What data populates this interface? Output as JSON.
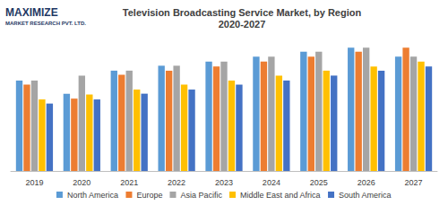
{
  "chart_data": {
    "type": "bar",
    "title": "Television Broadcasting Service Market, by Region",
    "subtitle": "2020-2027",
    "annotations": [
      "MAXIMIZE",
      "MARKET RESEARCH PVT. LTD."
    ],
    "categories": [
      "2019",
      "2020",
      "2021",
      "2022",
      "2023",
      "2024",
      "2025",
      "2026",
      "2027"
    ],
    "series": [
      {
        "name": "North America",
        "color": "#5b9bd5",
        "values": [
          110,
          94,
          122,
          128,
          133,
          139,
          145,
          150,
          139
        ]
      },
      {
        "name": "Europe",
        "color": "#ed7d31",
        "values": [
          105,
          88,
          117,
          122,
          127,
          133,
          139,
          145,
          150
        ]
      },
      {
        "name": "Asia Pacific",
        "color": "#a5a5a5",
        "values": [
          110,
          116,
          122,
          128,
          133,
          139,
          145,
          150,
          139
        ]
      },
      {
        "name": "Middle East and Africa",
        "color": "#ffc000",
        "values": [
          87,
          93,
          99,
          105,
          110,
          116,
          122,
          127,
          133
        ]
      },
      {
        "name": "South America",
        "color": "#4472c4",
        "values": [
          82,
          87,
          94,
          99,
          105,
          110,
          116,
          122,
          127
        ]
      }
    ],
    "ylim": [
      0,
      160
    ],
    "yticks": [
      0,
      40,
      80,
      120,
      160
    ],
    "grid": false,
    "legend": "bottom",
    "tick_labels": "x"
  }
}
